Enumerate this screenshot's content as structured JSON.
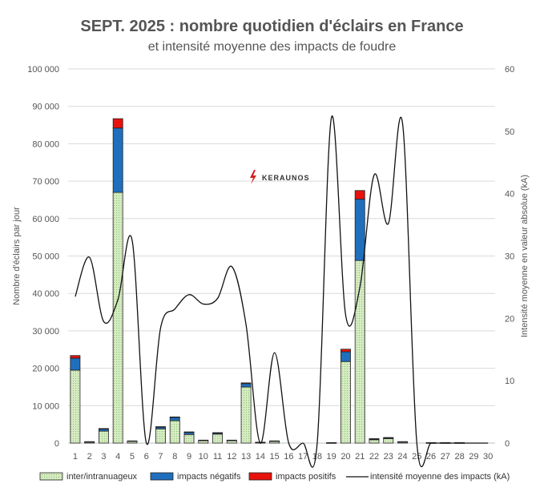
{
  "chart_data": {
    "type": "bar",
    "title": "SEPT. 2025 : nombre quotidien d'éclairs en France",
    "subtitle": "et intensité moyenne des impacts de foudre",
    "categories": [
      "1",
      "2",
      "3",
      "4",
      "5",
      "6",
      "7",
      "8",
      "9",
      "10",
      "11",
      "12",
      "13",
      "14",
      "15",
      "16",
      "17",
      "18",
      "19",
      "20",
      "21",
      "22",
      "23",
      "24",
      "25",
      "26",
      "27",
      "28",
      "29",
      "30"
    ],
    "ylabel": "Nombre d'éclairs par jour",
    "y2label": "Intensité moyenne en valeur absolue (kA)",
    "ylim": [
      0,
      100000
    ],
    "y2lim": [
      0,
      60
    ],
    "yticks": [
      "0",
      "10 000",
      "20 000",
      "30 000",
      "40 000",
      "50 000",
      "60 000",
      "70 000",
      "80 000",
      "90 000",
      "100 000"
    ],
    "y2ticks": [
      "0",
      "10",
      "20",
      "30",
      "40",
      "50",
      "60"
    ],
    "stacked": true,
    "series": [
      {
        "name": "inter/intranuageux",
        "color": "#d6ecc4",
        "values": [
          19500,
          300,
          3200,
          67000,
          500,
          0,
          3800,
          6000,
          2300,
          700,
          2400,
          700,
          15000,
          200,
          500,
          0,
          0,
          0,
          100,
          21800,
          48800,
          900,
          1200,
          300,
          0,
          100,
          100,
          100,
          0,
          0
        ]
      },
      {
        "name": "impacts négatifs",
        "color": "#1f6fbd",
        "values": [
          3200,
          100,
          600,
          17200,
          100,
          0,
          500,
          900,
          600,
          100,
          300,
          100,
          900,
          50,
          100,
          0,
          0,
          0,
          50,
          2600,
          16400,
          200,
          200,
          100,
          0,
          50,
          50,
          50,
          0,
          0
        ]
      },
      {
        "name": "impacts positifs",
        "color": "#e8120c",
        "values": [
          700,
          0,
          100,
          2500,
          0,
          0,
          100,
          100,
          100,
          0,
          100,
          0,
          200,
          0,
          0,
          0,
          0,
          0,
          0,
          700,
          2300,
          100,
          100,
          0,
          0,
          0,
          0,
          0,
          0,
          0
        ]
      }
    ],
    "line": {
      "name": "intensité moyenne des impacts (kA)",
      "color": "#111111",
      "axis": "y2",
      "values": [
        23.5,
        29.8,
        19.5,
        23.0,
        32.5,
        0,
        18.5,
        21.5,
        23.8,
        22.3,
        23.2,
        28.3,
        19.0,
        0,
        14.5,
        0,
        0,
        0,
        52.2,
        20.5,
        25.0,
        43.0,
        35.2,
        51.2,
        0,
        0,
        0,
        0,
        0,
        0
      ]
    },
    "legend": [
      "inter/intranuageux",
      "impacts négatifs",
      "impacts positifs",
      "intensité moyenne des impacts (kA)"
    ],
    "legend_position": "bottom"
  },
  "brand": {
    "name": "KERAUNOS",
    "color": "#d42020"
  }
}
